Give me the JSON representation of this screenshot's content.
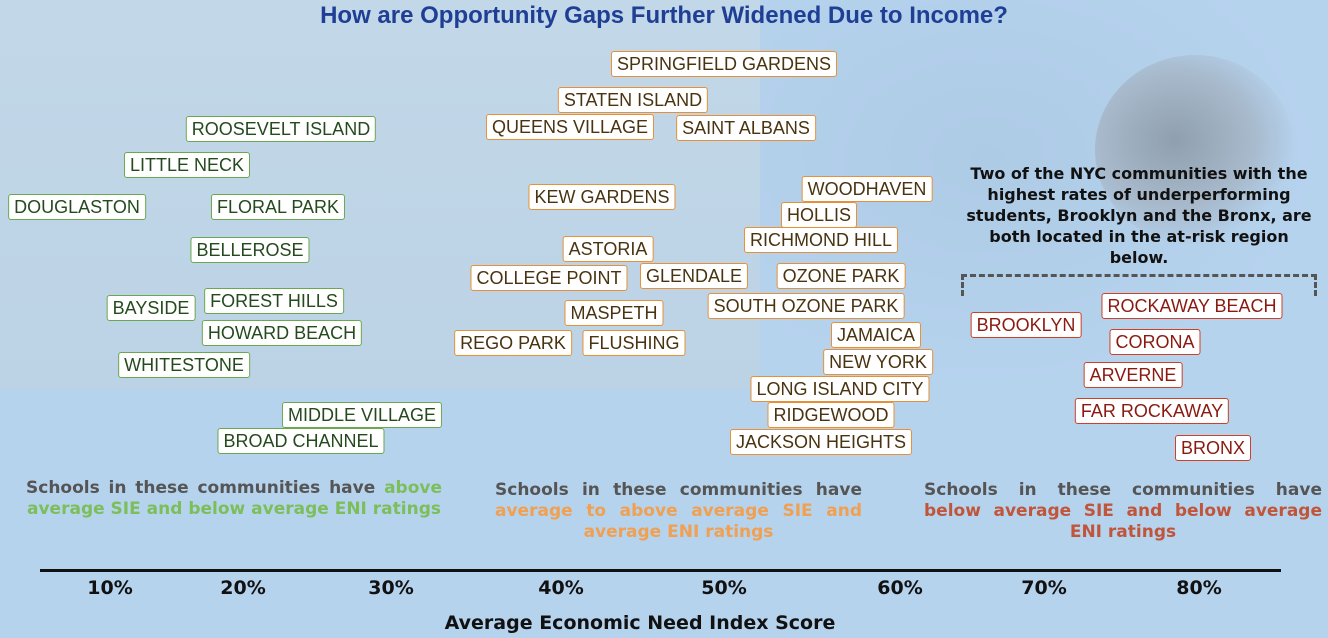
{
  "chart_data": {
    "type": "scatter",
    "title": "How are Opportunity Gaps Further Widened Due to Income?",
    "xlabel": "Average Economic Need Index Score",
    "x_ticks": [
      "10%",
      "20%",
      "30%",
      "40%",
      "50%",
      "60%",
      "70%",
      "80%"
    ],
    "annotation": "Two of the NYC communities with the highest rates of underperforming students, Brooklyn and the Bronx, are both located in the at-risk region below.",
    "groups": [
      {
        "color": "#6aa84f",
        "description_prefix": "Schools in these communities have",
        "description_highlight": "above average SIE and below average ENI ratings",
        "points": [
          {
            "label": "ROOSEVELT ISLAND",
            "x": 0.253
          },
          {
            "label": "LITTLE NECK",
            "x": 0.154
          },
          {
            "label": "DOUGLASTON",
            "x": 0.002
          },
          {
            "label": "FLORAL PARK",
            "x": 0.238
          },
          {
            "label": "BELLEROSE",
            "x": 0.203
          },
          {
            "label": "BAYSIDE",
            "x": 0.123
          },
          {
            "label": "FOREST HILLS",
            "x": 0.243
          },
          {
            "label": "HOWARD BEACH",
            "x": 0.255
          },
          {
            "label": "WHITESTONE",
            "x": 0.153
          },
          {
            "label": "MIDDLE VILLAGE",
            "x": 0.315
          },
          {
            "label": "BROAD CHANNEL",
            "x": 0.268
          }
        ]
      },
      {
        "color": "#e69138",
        "description_prefix": "Schools in these communities have",
        "description_highlight": "average to above average SIE and average ENI ratings",
        "points": [
          {
            "label": "SPRINGFIELD GARDENS",
            "x": 0.498
          },
          {
            "label": "STATEN ISLAND",
            "x": 0.445
          },
          {
            "label": "QUEENS VILLAGE",
            "x": 0.404
          },
          {
            "label": "SAINT ALBANS",
            "x": 0.492
          },
          {
            "label": "KEW GARDENS",
            "x": 0.405
          },
          {
            "label": "ASTORIA",
            "x": 0.426
          },
          {
            "label": "COLLEGE POINT",
            "x": 0.381
          },
          {
            "label": "GLENDALE",
            "x": 0.467
          },
          {
            "label": "MASPETH",
            "x": 0.438
          },
          {
            "label": "REGO PARK",
            "x": 0.359
          },
          {
            "label": "FLUSHING",
            "x": 0.444
          },
          {
            "label": "WOODHAVEN",
            "x": 0.558
          },
          {
            "label": "HOLLIS",
            "x": 0.549
          },
          {
            "label": "RICHMOND HILL",
            "x": 0.526
          },
          {
            "label": "OZONE PARK",
            "x": 0.555
          },
          {
            "label": "SOUTH OZONE PARK",
            "x": 0.503
          },
          {
            "label": "JAMAICA",
            "x": 0.596
          },
          {
            "label": "NEW YORK",
            "x": 0.583
          },
          {
            "label": "LONG ISLAND CITY",
            "x": 0.527
          },
          {
            "label": "RIDGEWOOD",
            "x": 0.547
          },
          {
            "label": "JACKSON HEIGHTS",
            "x": 0.512
          }
        ]
      },
      {
        "color": "#cc4125",
        "description_prefix": "Schools in these communities have",
        "description_highlight": "below average SIE and below average ENI ratings",
        "points": [
          {
            "label": "BROOKLYN",
            "x": 0.668
          },
          {
            "label": "ROCKAWAY BEACH",
            "x": 0.761
          },
          {
            "label": "CORONA",
            "x": 0.764
          },
          {
            "label": "ARVERNE",
            "x": 0.749
          },
          {
            "label": "FAR ROCKAWAY",
            "x": 0.745
          },
          {
            "label": "BRONX",
            "x": 0.789
          }
        ]
      }
    ]
  }
}
